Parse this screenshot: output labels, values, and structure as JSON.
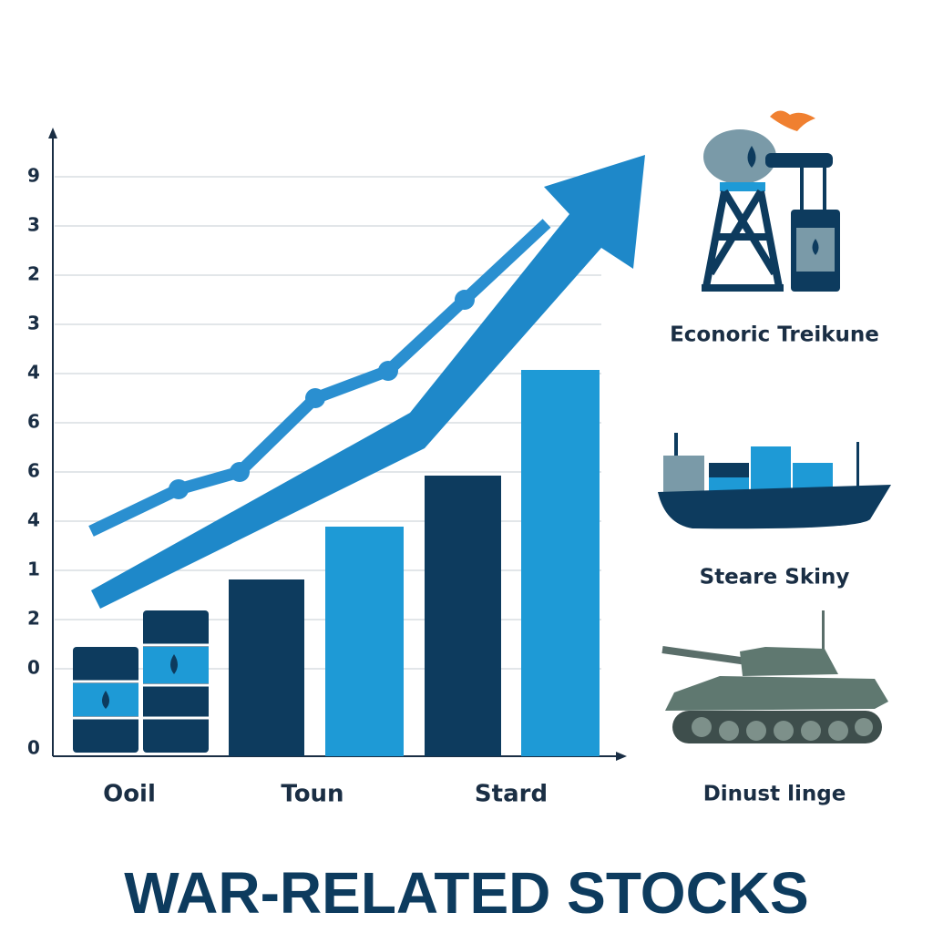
{
  "y_labels": [
    "9",
    "3",
    "2",
    "3",
    "4",
    "6",
    "6",
    "4",
    "1",
    "2",
    "0",
    "0"
  ],
  "categories": [
    "Ooil",
    "Toun",
    "Stard"
  ],
  "side_labels": [
    "Econoric Treikune",
    "Steare Skiny",
    "Dinust linge"
  ],
  "title": "WAR-RELATED STOCKS"
}
